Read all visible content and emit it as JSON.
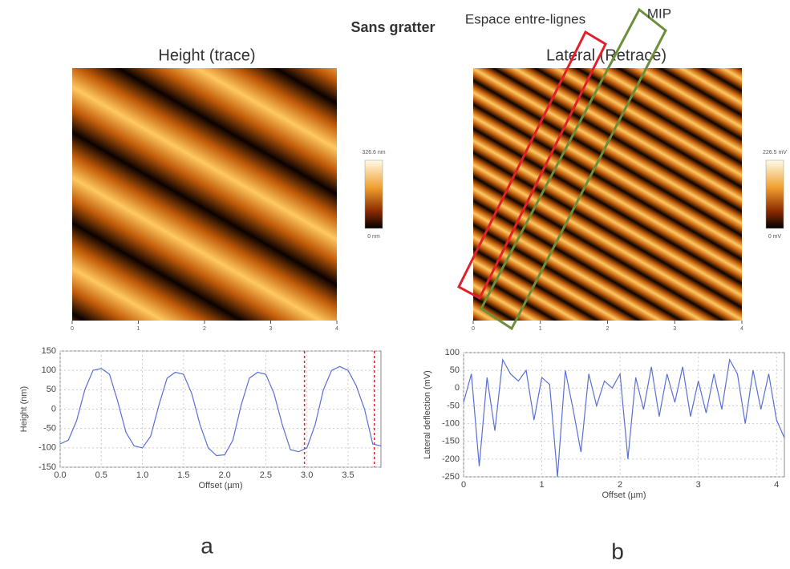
{
  "title": "Sans gratter",
  "annotations": [
    {
      "text": "Espace entre-lignes",
      "color": "#e0202a"
    },
    {
      "text": "MIP",
      "color": "#6e8f3a"
    }
  ],
  "panels": [
    {
      "label": "a",
      "image": {
        "title": "Height (trace)",
        "colorbar_max": "326.6 nm",
        "colorbar_min": "0 nm",
        "xticks": [
          0,
          1,
          2,
          3,
          4
        ]
      }
    },
    {
      "label": "b",
      "image": {
        "title": "Lateral (Retrace)",
        "colorbar_max": "226.5 mV",
        "colorbar_min": "0 mV",
        "xticks": [
          0,
          1,
          2,
          3,
          4
        ]
      }
    }
  ],
  "chart_data": [
    {
      "type": "line",
      "x_label": "Offset (µm)",
      "y_label": "Height (nm)",
      "grid": true,
      "xlim": [
        0,
        3.9
      ],
      "ylim": [
        -150,
        150
      ],
      "xticks": [
        {
          "value": 0,
          "label": "0.0"
        },
        0.5,
        {
          "value": 1,
          "label": "1.0"
        },
        1.5,
        {
          "value": 2,
          "label": "2.0"
        },
        2.5,
        {
          "value": 3,
          "label": "3.0"
        },
        3.5
      ],
      "yticks": [
        -150,
        -100,
        -50,
        0,
        50,
        100,
        150
      ],
      "markers": [
        2.97,
        3.82
      ],
      "marker_color": "#e0202a",
      "x": [
        0,
        0.1,
        0.2,
        0.3,
        0.4,
        0.5,
        0.6,
        0.7,
        0.8,
        0.9,
        1.0,
        1.1,
        1.2,
        1.3,
        1.4,
        1.5,
        1.6,
        1.7,
        1.8,
        1.9,
        2.0,
        2.1,
        2.2,
        2.3,
        2.4,
        2.5,
        2.6,
        2.7,
        2.8,
        2.9,
        3.0,
        3.1,
        3.2,
        3.3,
        3.4,
        3.5,
        3.6,
        3.7,
        3.8,
        3.9
      ],
      "series": [
        {
          "color": "#5a6fd6",
          "values": [
            -90,
            -80,
            -30,
            50,
            100,
            105,
            90,
            20,
            -60,
            -95,
            -100,
            -70,
            10,
            80,
            95,
            90,
            40,
            -40,
            -100,
            -120,
            -118,
            -80,
            10,
            80,
            95,
            90,
            40,
            -40,
            -105,
            -110,
            -100,
            -40,
            50,
            100,
            110,
            100,
            60,
            0,
            -90,
            -95
          ]
        }
      ]
    },
    {
      "type": "line",
      "x_label": "Offset (µm)",
      "y_label": "Lateral deflection (mV)",
      "grid": true,
      "xlim": [
        0,
        4.1
      ],
      "ylim": [
        -250,
        100
      ],
      "xticks": [
        0,
        1,
        2,
        3,
        4
      ],
      "yticks": [
        -250,
        -200,
        -150,
        -100,
        -50,
        0,
        50,
        100
      ],
      "x": [
        0,
        0.1,
        0.2,
        0.3,
        0.4,
        0.5,
        0.6,
        0.7,
        0.8,
        0.9,
        1.0,
        1.1,
        1.2,
        1.3,
        1.4,
        1.5,
        1.6,
        1.7,
        1.8,
        1.9,
        2.0,
        2.1,
        2.2,
        2.3,
        2.4,
        2.5,
        2.6,
        2.7,
        2.8,
        2.9,
        3.0,
        3.1,
        3.2,
        3.3,
        3.4,
        3.5,
        3.6,
        3.7,
        3.8,
        3.9,
        4.0,
        4.1
      ],
      "series": [
        {
          "color": "#5a6fd6",
          "values": [
            -40,
            40,
            -220,
            30,
            -120,
            80,
            40,
            20,
            50,
            -90,
            30,
            10,
            -250,
            50,
            -60,
            -180,
            40,
            -50,
            20,
            0,
            40,
            -200,
            30,
            -60,
            60,
            -80,
            40,
            -40,
            60,
            -80,
            20,
            -70,
            40,
            -60,
            80,
            40,
            -100,
            50,
            -60,
            40,
            -90,
            -140
          ]
        }
      ]
    }
  ]
}
